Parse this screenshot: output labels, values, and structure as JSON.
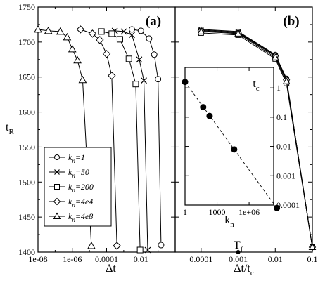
{
  "chart_data": [
    {
      "panel": "(a)",
      "type": "line",
      "x_scale": "log",
      "xlim": [
        1e-08,
        1
      ],
      "ylim": [
        1400,
        1750
      ],
      "xlabel": "Δt",
      "ylabel": "t_R",
      "xticks": [
        "1e-08",
        "1e-06",
        "0.0001",
        "0.01"
      ],
      "yticks": [
        "1400",
        "1450",
        "1500",
        "1550",
        "1600",
        "1650",
        "1700",
        "1750"
      ],
      "legend_position": "bottom-left",
      "series": [
        {
          "name": "k_n=1",
          "marker": "circle",
          "x": [
            0.003,
            0.01,
            0.03,
            0.06,
            0.1,
            0.15
          ],
          "y": [
            1718,
            1716,
            1705,
            1682,
            1647,
            1410
          ]
        },
        {
          "name": "k_n=50",
          "marker": "x",
          "x": [
            0.0003,
            0.001,
            0.003,
            0.008,
            0.015,
            0.025
          ],
          "y": [
            1716,
            1715,
            1710,
            1675,
            1645,
            1403
          ]
        },
        {
          "name": "k_n=200",
          "marker": "square",
          "x": [
            5e-05,
            0.0002,
            0.0006,
            0.002,
            0.005,
            0.009
          ],
          "y": [
            1715,
            1712,
            1704,
            1676,
            1640,
            1403
          ]
        },
        {
          "name": "k_n=4e4",
          "marker": "diamond",
          "x": [
            3e-06,
            1.5e-05,
            4e-05,
            0.0001,
            0.0002,
            0.0004
          ],
          "y": [
            1718,
            1712,
            1703,
            1683,
            1652,
            1409
          ]
        },
        {
          "name": "k_n=4e8",
          "marker": "triangle",
          "x": [
            1e-08,
            4e-08,
            2e-07,
            5e-07,
            1e-06,
            2e-06,
            4e-06,
            1.3e-05
          ],
          "y": [
            1718,
            1716,
            1715,
            1707,
            1690,
            1674,
            1646,
            1409
          ]
        }
      ]
    },
    {
      "panel": "(b)",
      "type": "line",
      "x_scale": "log",
      "xlim": [
        2e-05,
        0.1
      ],
      "ylim": [
        1400,
        1750
      ],
      "xlabel": "Δt/t_c",
      "xticks": [
        "0.0001",
        "0.001",
        "0.01",
        "0.1"
      ],
      "reference_line": {
        "x": 0.001,
        "label": "T_f"
      },
      "series": [
        {
          "name": "k_n=1",
          "marker": "circle",
          "x": [
            0.0001,
            0.001,
            0.01,
            0.02,
            0.1
          ],
          "y": [
            1718,
            1715,
            1682,
            1648,
            1407
          ]
        },
        {
          "name": "k_n=50",
          "marker": "x",
          "x": [
            0.0001,
            0.001,
            0.01,
            0.02,
            0.1
          ],
          "y": [
            1717,
            1714,
            1681,
            1647,
            1407
          ]
        },
        {
          "name": "k_n=200",
          "marker": "square",
          "x": [
            0.0001,
            0.001,
            0.01,
            0.02,
            0.1
          ],
          "y": [
            1713,
            1710,
            1676,
            1641,
            1407
          ]
        },
        {
          "name": "k_n=4e4",
          "marker": "diamond",
          "x": [
            0.0001,
            0.001,
            0.01,
            0.02,
            0.1
          ],
          "y": [
            1716,
            1713,
            1680,
            1646,
            1407
          ]
        },
        {
          "name": "k_n=4e8",
          "marker": "triangle",
          "x": [
            0.0001,
            0.001,
            0.01,
            0.02,
            0.1
          ],
          "y": [
            1715,
            1712,
            1678,
            1644,
            1407
          ]
        }
      ]
    },
    {
      "panel": "inset",
      "type": "scatter",
      "x_scale": "log",
      "y_scale": "log",
      "xlim": [
        1,
        200000000.0
      ],
      "ylim": [
        0.0001,
        5
      ],
      "xlabel": "k_n",
      "ylabel": "t_c",
      "xticks": [
        "1",
        "1000",
        "1e+06"
      ],
      "yticks": [
        "1",
        "0.1",
        "0.01",
        "0.001",
        "0.0001"
      ],
      "fit": "dashed",
      "x": [
        1,
        50,
        200,
        40000,
        400000000
      ],
      "y": [
        1.6,
        0.22,
        0.11,
        0.0079,
        7.9e-05
      ]
    }
  ]
}
